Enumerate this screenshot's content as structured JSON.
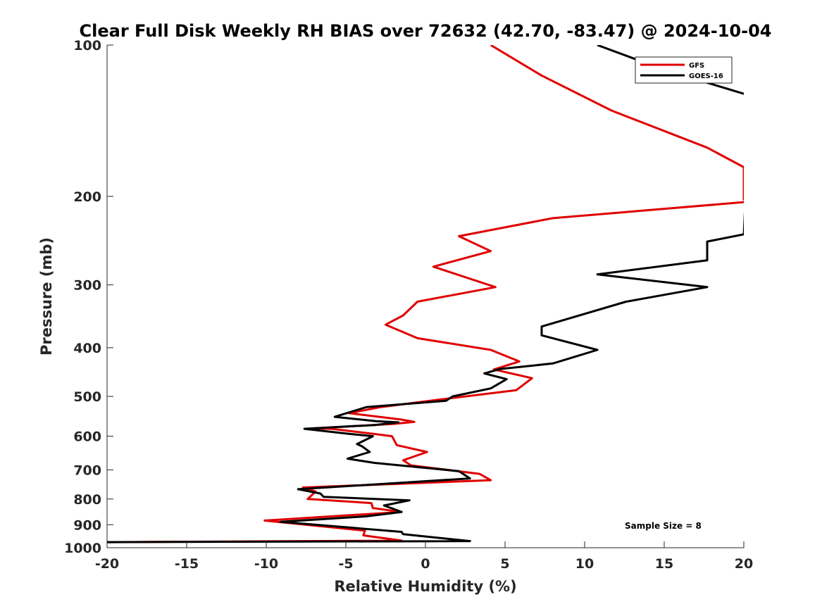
{
  "chart_data": {
    "type": "line",
    "title": "Clear Full Disk Weekly RH BIAS over 72632 (42.70, -83.47) @ 2024-10-04",
    "xlabel": "Relative Humidity (%)",
    "ylabel": "Pressure (mb)",
    "xlim": [
      -20,
      20
    ],
    "ylim": [
      1000,
      100
    ],
    "yscale": "log",
    "y_reversed": true,
    "xticks": [
      -20,
      -15,
      -10,
      -5,
      0,
      5,
      10,
      15,
      20
    ],
    "xtick_labels": [
      "-20",
      "-15",
      "-10",
      "-5",
      "0",
      "5",
      "10",
      "15",
      "20"
    ],
    "yticks": [
      100,
      200,
      300,
      400,
      500,
      600,
      700,
      800,
      900,
      1000
    ],
    "ytick_labels": [
      "100",
      "200",
      "300",
      "400",
      "500",
      "600",
      "700",
      "800",
      "900",
      "1000"
    ],
    "grid": false,
    "legend_position": "top-right",
    "annotation": "Sample Size = 8",
    "series": [
      {
        "name": "GFS",
        "color": "#e00000",
        "points": [
          [
            4.1,
            100
          ],
          [
            7.3,
            115
          ],
          [
            11.7,
            135
          ],
          [
            17.7,
            160
          ],
          [
            20,
            175
          ],
          [
            20,
            203
          ],
          [
            20.3,
            205
          ],
          [
            8.0,
            221
          ],
          [
            2.1,
            240
          ],
          [
            4.1,
            257
          ],
          [
            0.5,
            276
          ],
          [
            4.4,
            303
          ],
          [
            -0.5,
            324
          ],
          [
            -1.4,
            345
          ],
          [
            -2.5,
            360
          ],
          [
            -0.5,
            383
          ],
          [
            4.1,
            404
          ],
          [
            5.9,
            426
          ],
          [
            4.3,
            442
          ],
          [
            6.7,
            460
          ],
          [
            5.7,
            486
          ],
          [
            0.3,
            510
          ],
          [
            -2.8,
            525
          ],
          [
            -4.8,
            540
          ],
          [
            -1.5,
            556
          ],
          [
            -0.7,
            562
          ],
          [
            -2.0,
            567
          ],
          [
            -7.1,
            579
          ],
          [
            -5.9,
            580
          ],
          [
            -3.0,
            595
          ],
          [
            -2.1,
            600
          ],
          [
            -1.8,
            625
          ],
          [
            0.1,
            645
          ],
          [
            -1.4,
            670
          ],
          [
            -0.9,
            686
          ],
          [
            3.4,
            713
          ],
          [
            4.1,
            734
          ],
          [
            -7.7,
            759
          ],
          [
            -6.9,
            773
          ],
          [
            -7.4,
            800
          ],
          [
            -3.4,
            815
          ],
          [
            -3.3,
            834
          ],
          [
            -1.5,
            849
          ],
          [
            -10.1,
            883
          ],
          [
            -3.8,
            925
          ],
          [
            -3.9,
            945
          ],
          [
            -1.5,
            968
          ],
          [
            -20,
            975
          ]
        ]
      },
      {
        "name": "GOES-16",
        "color": "#000000",
        "points": [
          [
            10.8,
            100
          ],
          [
            15.0,
            112
          ],
          [
            20,
            125
          ],
          [
            20.4,
            126
          ],
          [
            20,
            238
          ],
          [
            17.7,
            246
          ],
          [
            17.7,
            268
          ],
          [
            10.8,
            286
          ],
          [
            17.7,
            303
          ],
          [
            12.6,
            324
          ],
          [
            7.3,
            363
          ],
          [
            7.3,
            378
          ],
          [
            10.8,
            404
          ],
          [
            8.0,
            430
          ],
          [
            4.7,
            441
          ],
          [
            3.7,
            450
          ],
          [
            5.1,
            462
          ],
          [
            4.1,
            482
          ],
          [
            1.7,
            500
          ],
          [
            1.3,
            510
          ],
          [
            -3.7,
            525
          ],
          [
            -5.7,
            549
          ],
          [
            -3.1,
            560
          ],
          [
            -1.7,
            563
          ],
          [
            -3.2,
            570
          ],
          [
            -7.6,
            580
          ],
          [
            -4.7,
            594
          ],
          [
            -3.3,
            600
          ],
          [
            -4.3,
            622
          ],
          [
            -4.0,
            628
          ],
          [
            -3.5,
            645
          ],
          [
            -4.9,
            665
          ],
          [
            -3.2,
            678
          ],
          [
            2.1,
            704
          ],
          [
            2.8,
            728
          ],
          [
            -8.0,
            765
          ],
          [
            -6.6,
            780
          ],
          [
            -6.4,
            792
          ],
          [
            -1.0,
            805
          ],
          [
            -2.6,
            824
          ],
          [
            -1.5,
            849
          ],
          [
            -3.7,
            866
          ],
          [
            -9.1,
            888
          ],
          [
            -1.5,
            930
          ],
          [
            -1.4,
            940
          ],
          [
            2.8,
            970
          ],
          [
            -20,
            975
          ]
        ]
      }
    ]
  }
}
